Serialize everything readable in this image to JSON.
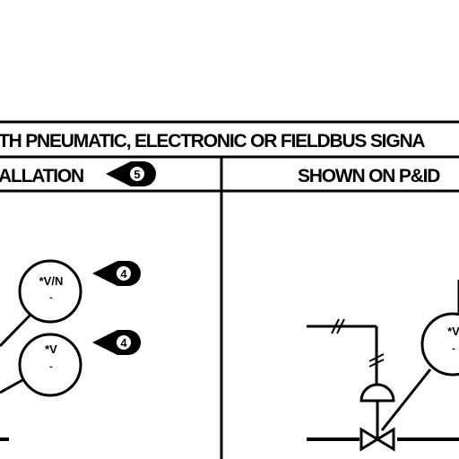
{
  "header": {
    "title": "TH PNEUMATIC, ELECTRONIC OR FIELDBUS SIGNA",
    "left_column": "ALLATION",
    "right_column": "SHOWN ON P&ID"
  },
  "flags": [
    {
      "number": "5"
    },
    {
      "number": "4"
    },
    {
      "number": "4"
    }
  ],
  "bubbles": [
    {
      "tag": "*V/N",
      "sub": "-"
    },
    {
      "tag": "*V",
      "sub": "-"
    },
    {
      "tag": "*V",
      "sub": "-"
    }
  ],
  "colors": {
    "ink": "#000000",
    "background": "#ffffff"
  }
}
